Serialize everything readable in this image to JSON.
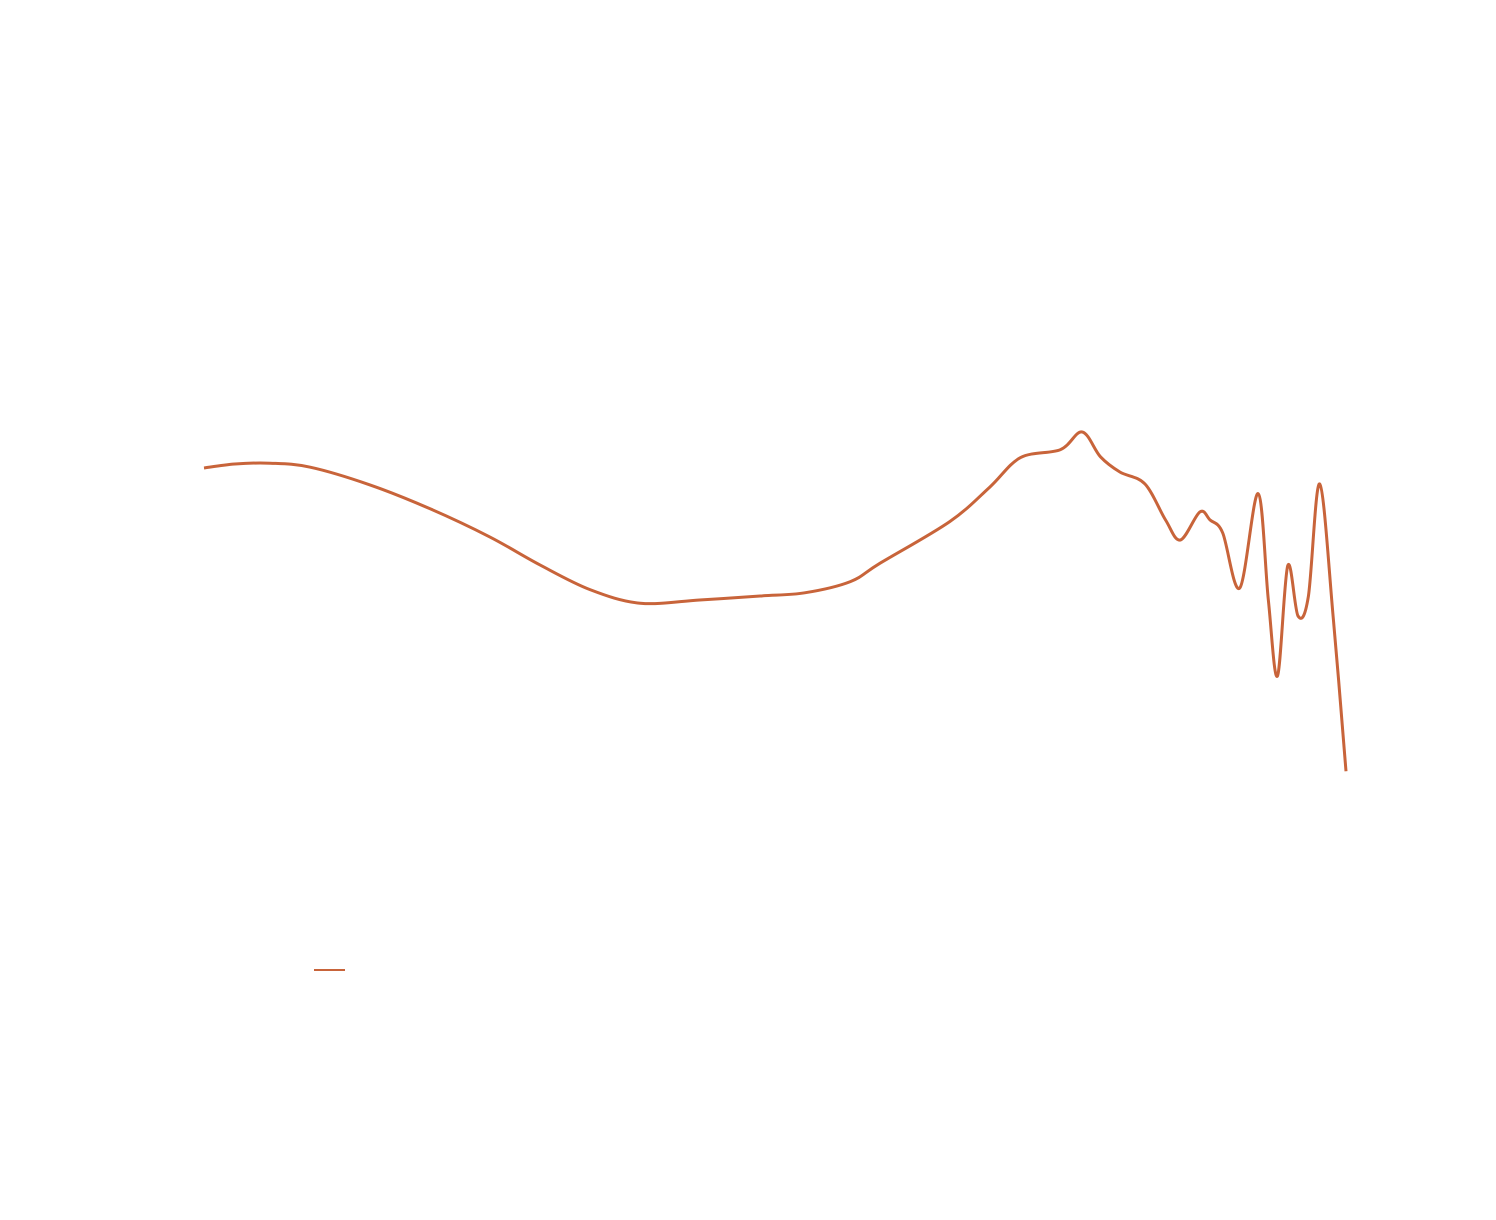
{
  "chart_data": {
    "type": "line",
    "x": [
      0,
      2.7,
      5.8,
      9.3,
      14.5,
      19.8,
      25.0,
      29.4,
      33.8,
      38.2,
      43.4,
      48.7,
      52.6,
      56.6,
      59.2,
      65.3,
      68.8,
      71.5,
      75.0,
      76.9,
      78.5,
      80.2,
      82.4,
      84.2,
      85.5,
      87.2,
      88.1,
      89.2,
      90.7,
      92.3,
      93.2,
      94.0,
      94.9,
      95.8,
      96.7,
      97.7,
      98.9,
      100
    ],
    "series": [
      {
        "color": "#c8643a",
        "values": [
          54,
          54.5,
          54.6,
          54.1,
          51.9,
          48.9,
          45.4,
          41.9,
          38.8,
          37.1,
          37.5,
          38,
          38.4,
          39.8,
          42.1,
          47.3,
          51.6,
          55.3,
          56.3,
          58.5,
          55.4,
          53.5,
          52,
          47.5,
          45,
          48.5,
          47.5,
          45.9,
          39,
          50.8,
          37.5,
          28,
          41.8,
          35.5,
          37.9,
          52,
          35,
          16.1
        ]
      }
    ],
    "xlim": [
      0,
      100
    ],
    "ylim": [
      0,
      100
    ]
  }
}
